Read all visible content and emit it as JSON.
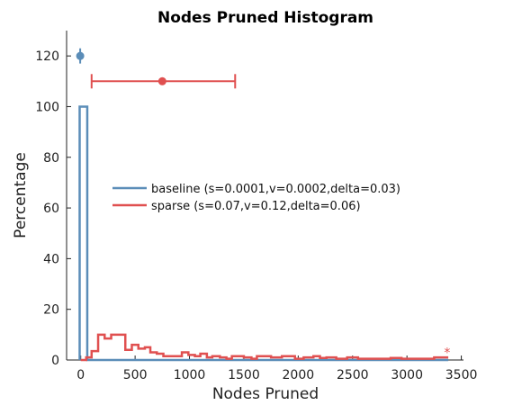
{
  "chart_data": {
    "type": "histogram",
    "title": "Nodes Pruned Histogram",
    "xlabel": "Nodes Pruned",
    "ylabel": "Percentage",
    "xlim": [
      -130,
      3520
    ],
    "ylim": [
      0,
      130
    ],
    "xticks": [
      0,
      500,
      1000,
      1500,
      2000,
      2500,
      3000,
      3500
    ],
    "yticks": [
      0,
      20,
      40,
      60,
      80,
      100,
      120
    ],
    "legend_position": "center-left",
    "series": [
      {
        "name": "baseline (s=0.0001,v=0.0002,delta=0.03)",
        "color": "#5b8db8",
        "steps": [
          [
            -10,
            100
          ],
          [
            60,
            0
          ]
        ],
        "step_end": 3380,
        "summary_point": {
          "x": -5,
          "y": 120,
          "err_y": [
            117,
            123
          ]
        }
      },
      {
        "name": "sparse (s=0.07,v=0.12,delta=0.06)",
        "color": "#e05050",
        "steps": [
          [
            0,
            0
          ],
          [
            50,
            1
          ],
          [
            100,
            3.5
          ],
          [
            160,
            10
          ],
          [
            220,
            8.5
          ],
          [
            280,
            10
          ],
          [
            410,
            4
          ],
          [
            470,
            6
          ],
          [
            530,
            4.5
          ],
          [
            590,
            5
          ],
          [
            640,
            3
          ],
          [
            700,
            2.5
          ],
          [
            760,
            1.5
          ],
          [
            810,
            1.5
          ],
          [
            870,
            1.5
          ],
          [
            930,
            3
          ],
          [
            990,
            2
          ],
          [
            1050,
            1.5
          ],
          [
            1100,
            2.5
          ],
          [
            1160,
            1
          ],
          [
            1210,
            1.5
          ],
          [
            1280,
            1
          ],
          [
            1340,
            0.5
          ],
          [
            1390,
            1.5
          ],
          [
            1500,
            1
          ],
          [
            1570,
            0.5
          ],
          [
            1620,
            1.5
          ],
          [
            1750,
            1
          ],
          [
            1850,
            1.5
          ],
          [
            1970,
            0.5
          ],
          [
            2050,
            1
          ],
          [
            2140,
            1.5
          ],
          [
            2200,
            0.8
          ],
          [
            2260,
            1
          ],
          [
            2350,
            0.5
          ],
          [
            2450,
            1
          ],
          [
            2550,
            0.5
          ],
          [
            2700,
            0.5
          ],
          [
            2850,
            0.8
          ],
          [
            2950,
            0.5
          ],
          [
            3100,
            0.5
          ],
          [
            3250,
            1
          ]
        ],
        "step_end": 3380,
        "summary_point": {
          "x": 750,
          "y": 110,
          "err_x": [
            100,
            1420
          ]
        },
        "marker": {
          "x": 3370,
          "y": 3,
          "symbol": "*"
        }
      }
    ]
  }
}
